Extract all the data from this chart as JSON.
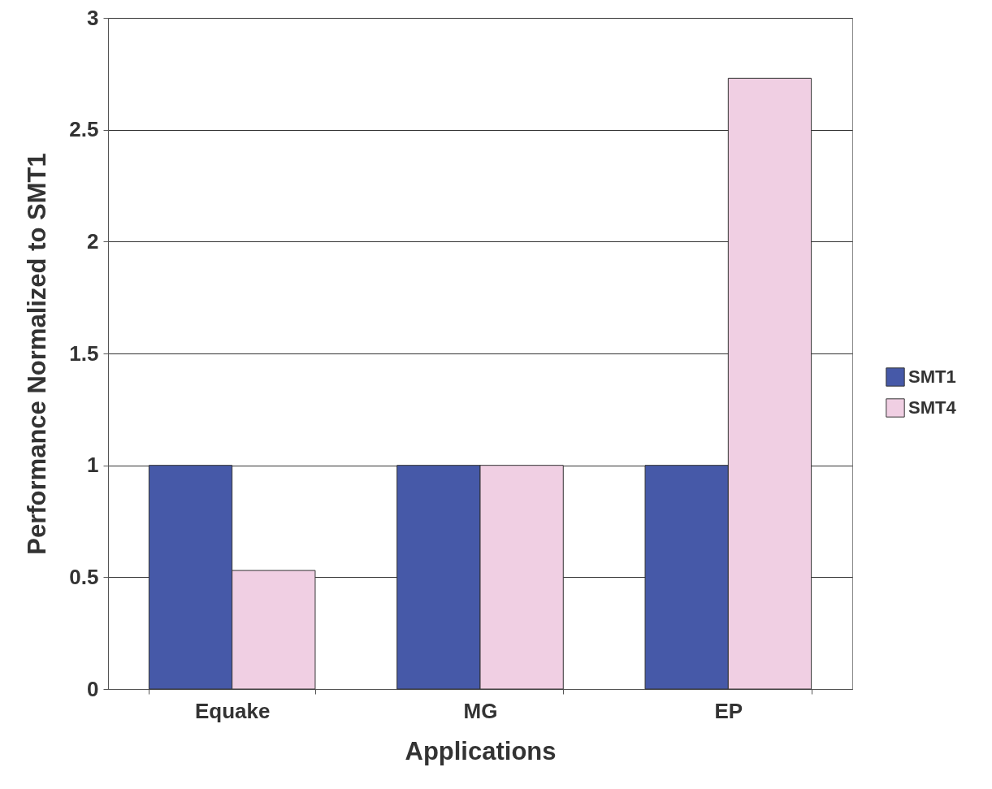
{
  "chart_data": {
    "type": "bar",
    "xlabel": "Applications",
    "ylabel": "Performance Normalized to SMT1",
    "categories": [
      "Equake",
      "MG",
      "EP"
    ],
    "series": [
      {
        "name": "SMT1",
        "color": "#4659a8",
        "values": [
          1,
          1,
          1
        ]
      },
      {
        "name": "SMT4",
        "color": "#f0cfe3",
        "values": [
          0.53,
          1,
          2.73
        ]
      }
    ],
    "ylim": [
      0,
      3
    ],
    "yticks": [
      0,
      0.5,
      1,
      1.5,
      2,
      2.5,
      3
    ],
    "grid": "y",
    "legend": "right"
  }
}
